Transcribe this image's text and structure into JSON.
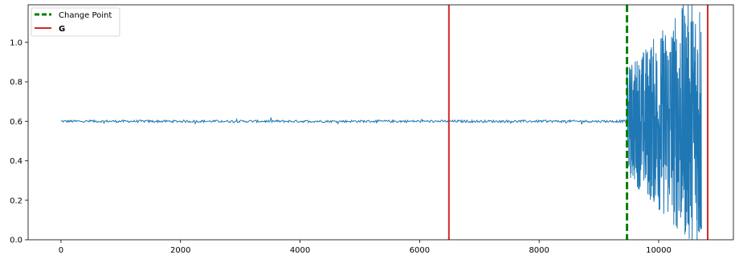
{
  "chart_data": {
    "type": "line",
    "title": "",
    "xlabel": "",
    "ylabel": "",
    "xlim": [
      -550,
      11250
    ],
    "ylim": [
      0.0,
      1.19
    ],
    "x_ticks": [
      0,
      2000,
      4000,
      6000,
      8000,
      10000
    ],
    "x_tick_labels": [
      "0",
      "2000",
      "4000",
      "6000",
      "8000",
      "10000"
    ],
    "y_ticks": [
      0.0,
      0.2,
      0.4,
      0.6,
      0.8,
      1.0
    ],
    "y_tick_labels": [
      "0.0",
      "0.2",
      "0.4",
      "0.6",
      "0.8",
      "1.0"
    ],
    "grid": false,
    "legend_position": "top-left",
    "series": [
      {
        "color": "#1f77b4",
        "segments": [
          {
            "x_start": 0,
            "x_end": 9470,
            "level": 0.6,
            "noise": "low (about ±0.01)"
          },
          {
            "x_start": 9470,
            "x_end": 10720,
            "level": 0.6,
            "noise": "high (values span 0.0 to 1.19)"
          }
        ]
      }
    ],
    "vertical_lines": [
      {
        "name": "Change Point",
        "x": 9470,
        "color": "#008000",
        "style": "dashed"
      },
      {
        "name": "G",
        "x": 6490,
        "color": "#d62728",
        "style": "solid"
      },
      {
        "name": "G",
        "x": 10820,
        "color": "#d62728",
        "style": "solid"
      }
    ],
    "legend": [
      {
        "label": "Change Point",
        "color": "#008000",
        "style": "dashed",
        "bold": false
      },
      {
        "label": "G",
        "color": "#d62728",
        "style": "solid",
        "bold": true
      }
    ]
  }
}
